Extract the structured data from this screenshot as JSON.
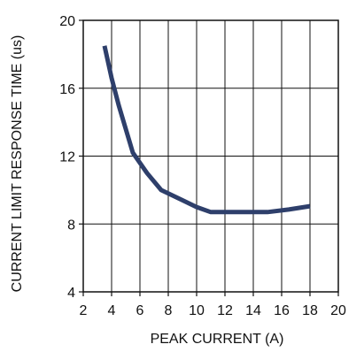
{
  "chart_data": {
    "type": "line",
    "title": "",
    "xlabel": "PEAK CURRENT (A)",
    "ylabel": "CURRENT LIMIT RESPONSE TIME (us)",
    "xlim": [
      2,
      20
    ],
    "ylim": [
      4,
      20
    ],
    "x_ticks": [
      "2",
      "4",
      "6",
      "8",
      "10",
      "12",
      "14",
      "16",
      "18",
      "20"
    ],
    "y_ticks": [
      "4",
      "8",
      "12",
      "16",
      "20"
    ],
    "grid": true,
    "legend": "none",
    "line_color": "#2e3f6b",
    "series": [
      {
        "x": [
          3.5,
          4.0,
          4.5,
          5.0,
          5.5,
          6.5,
          7.5,
          9.0,
          10.0,
          11.0,
          12.0,
          13.0,
          15.0,
          16.5,
          18.0
        ],
        "y": [
          18.5,
          16.6,
          15.0,
          13.6,
          12.2,
          11.0,
          10.0,
          9.4,
          9.0,
          8.7,
          8.7,
          8.7,
          8.7,
          8.85,
          9.05
        ]
      }
    ]
  }
}
